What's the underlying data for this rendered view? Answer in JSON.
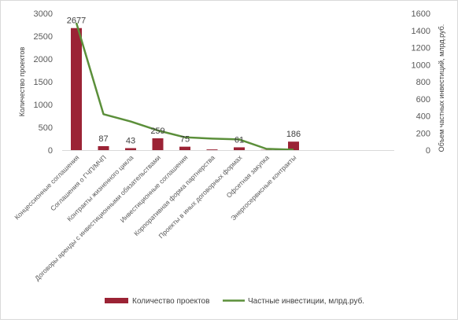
{
  "chart_data": {
    "type": "bar+line",
    "categories": [
      "Концессионные соглашения",
      "Соглашения о ГЧП/МЧП",
      "Контракты жизненного цикла",
      "Договоры аренды с инвестиционными обязательствами",
      "Инвестиционные соглашения",
      "Корпоративная форма партнерства",
      "Проекты в иных договорных формах",
      "Офсетная закупка",
      "Энергосервисные контракты"
    ],
    "series": [
      {
        "name": "Количество проектов",
        "type": "bar",
        "axis": "left",
        "color": "#9b2335",
        "values": [
          2677,
          87,
          43,
          259,
          75,
          15,
          61,
          5,
          186
        ],
        "data_labels": [
          "2677",
          "87",
          "43",
          "259",
          "75",
          "",
          "61",
          "",
          "186"
        ]
      },
      {
        "name": "Частные инвестиции, млрд.руб.",
        "type": "line",
        "axis": "right",
        "color": "#5b8f3a",
        "values": [
          1490,
          420,
          335,
          230,
          150,
          135,
          125,
          15,
          5
        ]
      }
    ],
    "ylabel": "Количество проектов",
    "ylabel_right": "Объем частных инвестиций, млрд.руб.",
    "ylim": [
      0,
      3000
    ],
    "ylim_right": [
      0,
      1600
    ],
    "yticks": [
      0,
      500,
      1000,
      1500,
      2000,
      2500,
      3000
    ],
    "yticks_right": [
      0,
      200,
      400,
      600,
      800,
      1000,
      1200,
      1400,
      1600
    ],
    "grid": false,
    "legend_position": "bottom"
  }
}
